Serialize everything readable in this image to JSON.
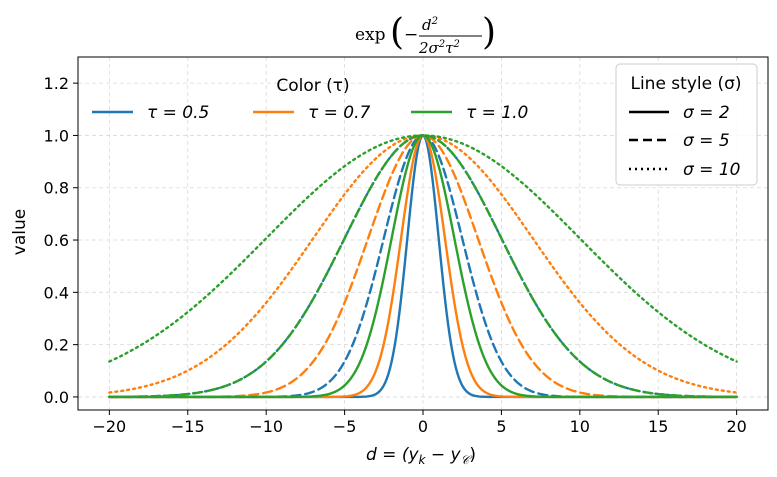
{
  "chart_data": {
    "type": "line",
    "title": "exp(−d²/(2σ²τ²))",
    "title_parts": {
      "fn": "exp",
      "numerator": "d",
      "num_sup": "2",
      "denominator": "2σ",
      "den_sup1": "2",
      "den_tau": "τ",
      "den_sup2": "2"
    },
    "xlabel": "d = (y_k − y_C)",
    "xlabel_parts": {
      "lhs": "d = (y",
      "sub1": "k",
      "mid": " − y",
      "sub2": "𝒞",
      "rhs": ")"
    },
    "ylabel": "value",
    "xlim": [
      -22,
      22
    ],
    "ylim": [
      -0.05,
      1.3
    ],
    "x_domain": [
      -20,
      20
    ],
    "xticks": [
      -20,
      -15,
      -10,
      -5,
      0,
      5,
      10,
      15,
      20
    ],
    "xtick_labels": [
      "−20",
      "−15",
      "−10",
      "−5",
      "0",
      "5",
      "10",
      "15",
      "20"
    ],
    "yticks": [
      0.0,
      0.2,
      0.4,
      0.6,
      0.8,
      1.0,
      1.2
    ],
    "ytick_labels": [
      "0.0",
      "0.2",
      "0.4",
      "0.6",
      "0.8",
      "1.0",
      "1.2"
    ],
    "grid": true,
    "formula": "exp(-d^2 / (2 * sigma^2 * tau^2))",
    "taus": [
      0.5,
      0.7,
      1.0
    ],
    "sigmas": [
      2,
      5,
      10
    ],
    "colors": {
      "0.5": "#1f77b4",
      "0.7": "#ff7f0e",
      "1.0": "#2ca02c"
    },
    "line_styles": {
      "2": "solid",
      "5": "dashed",
      "10": "dotted"
    },
    "series": [
      {
        "name": "τ=0.5, σ=2",
        "tau": 0.5,
        "sigma": 2
      },
      {
        "name": "τ=0.5, σ=5",
        "tau": 0.5,
        "sigma": 5
      },
      {
        "name": "τ=0.5, σ=10",
        "tau": 0.5,
        "sigma": 10
      },
      {
        "name": "τ=0.7, σ=2",
        "tau": 0.7,
        "sigma": 2
      },
      {
        "name": "τ=0.7, σ=5",
        "tau": 0.7,
        "sigma": 5
      },
      {
        "name": "τ=0.7, σ=10",
        "tau": 0.7,
        "sigma": 10
      },
      {
        "name": "τ=1.0, σ=2",
        "tau": 1.0,
        "sigma": 2
      },
      {
        "name": "τ=1.0, σ=5",
        "tau": 1.0,
        "sigma": 5
      },
      {
        "name": "τ=1.0, σ=10",
        "tau": 1.0,
        "sigma": 10
      }
    ],
    "legend_color": {
      "title": "Color (τ)",
      "placement": "top-left",
      "entries": [
        {
          "label": "τ = 0.5",
          "tau": 0.5
        },
        {
          "label": "τ = 0.7",
          "tau": 0.7
        },
        {
          "label": "τ = 1.0",
          "tau": 1.0
        }
      ]
    },
    "legend_style": {
      "title": "Line style (σ)",
      "placement": "top-right",
      "entries": [
        {
          "label": "σ = 2",
          "sigma": 2
        },
        {
          "label": "σ = 5",
          "sigma": 5
        },
        {
          "label": "σ = 10",
          "sigma": 10
        }
      ]
    }
  }
}
